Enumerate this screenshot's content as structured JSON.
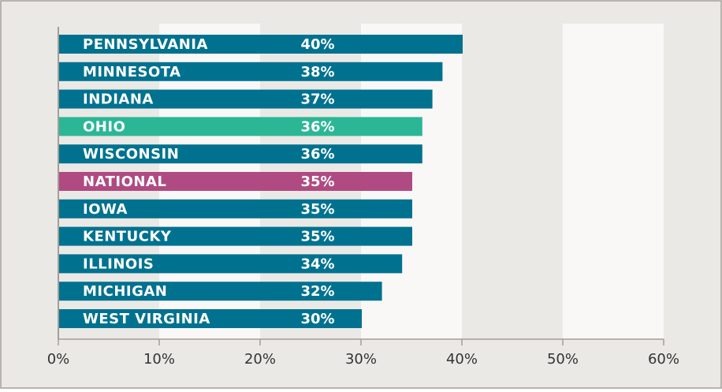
{
  "chart_data": {
    "type": "hbar",
    "categories": [
      "PENNSYLVANIA",
      "MINNESOTA",
      "INDIANA",
      "OHIO",
      "WISCONSIN",
      "NATIONAL",
      "IOWA",
      "KENTUCKY",
      "ILLINOIS",
      "MICHIGAN",
      "WEST VIRGINIA"
    ],
    "values": [
      40,
      38,
      37,
      36,
      36,
      35,
      35,
      35,
      34,
      32,
      30
    ],
    "value_labels": [
      "40%",
      "38%",
      "37%",
      "36%",
      "36%",
      "35%",
      "35%",
      "35%",
      "34%",
      "32%",
      "30%"
    ],
    "colors": [
      "#00728f",
      "#00728f",
      "#00728f",
      "#2bb795",
      "#00728f",
      "#b04a82",
      "#00728f",
      "#00728f",
      "#00728f",
      "#00728f",
      "#00728f"
    ],
    "xlim": [
      0,
      60
    ],
    "xticks": [
      {
        "value": 0,
        "label": "0%"
      },
      {
        "value": 10,
        "label": "10%"
      },
      {
        "value": 20,
        "label": "20%"
      },
      {
        "value": 30,
        "label": "30%"
      },
      {
        "value": 40,
        "label": "40%"
      },
      {
        "value": 50,
        "label": "50%"
      },
      {
        "value": 60,
        "label": "60%"
      }
    ]
  }
}
